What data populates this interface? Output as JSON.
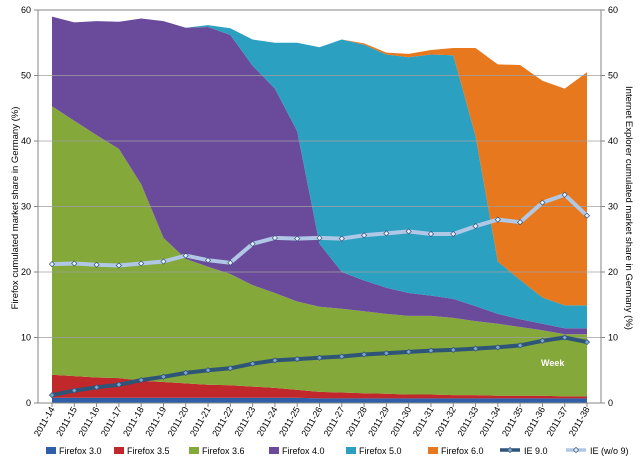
{
  "chart_data": {
    "type": "area",
    "stacked": true,
    "categories": [
      "2011-14",
      "2011-15",
      "2011-16",
      "2011-17",
      "2011-18",
      "2011-19",
      "2011-20",
      "2011-21",
      "2011-22",
      "2011-23",
      "2011-24",
      "2011-25",
      "2011-26",
      "2011-27",
      "2011-28",
      "2011-29",
      "2011-30",
      "2011-31",
      "2011-32",
      "2011-33",
      "2011-34",
      "2011-35",
      "2011-36",
      "2011-37",
      "2011-38"
    ],
    "ylabel_left": "Firefox cumulated market share in Germany (%)",
    "ylabel_right": "Internet Explorer cumulated market share in Germany (%)",
    "ylim": [
      0,
      60
    ],
    "yticks": [
      0,
      10,
      20,
      30,
      40,
      50,
      60
    ],
    "annotation": "Week",
    "legend_position": "bottom",
    "series": [
      {
        "name": "Firefox 3.0",
        "color": "#2e5fa8",
        "values": [
          0.8,
          0.8,
          0.8,
          0.8,
          0.8,
          0.8,
          0.8,
          0.8,
          0.8,
          0.8,
          0.8,
          0.8,
          0.7,
          0.7,
          0.7,
          0.7,
          0.7,
          0.7,
          0.7,
          0.7,
          0.7,
          0.7,
          0.7,
          0.7,
          0.7
        ]
      },
      {
        "name": "Firefox 3.5",
        "color": "#c0282b",
        "values": [
          3.5,
          3.3,
          3.1,
          3.0,
          2.6,
          2.4,
          2.2,
          2.0,
          1.9,
          1.7,
          1.5,
          1.2,
          1.0,
          0.9,
          0.8,
          0.7,
          0.6,
          0.6,
          0.5,
          0.5,
          0.4,
          0.4,
          0.4,
          0.3,
          0.3
        ]
      },
      {
        "name": "Firefox 3.6",
        "color": "#84a83a",
        "values": [
          41.0,
          39.0,
          37.0,
          35.0,
          30.0,
          22.0,
          19.0,
          18.0,
          17.0,
          15.5,
          14.5,
          13.5,
          13.0,
          12.8,
          12.5,
          12.2,
          12.0,
          12.0,
          11.8,
          11.3,
          11.0,
          10.5,
          10.0,
          9.5,
          9.5
        ]
      },
      {
        "name": "Firefox 4.0",
        "color": "#6a4a9a",
        "values": [
          13.7,
          15.0,
          17.4,
          19.4,
          25.3,
          33.1,
          35.3,
          36.6,
          36.5,
          33.5,
          31.2,
          26.0,
          9.6,
          5.6,
          4.7,
          4.0,
          3.5,
          3.1,
          2.9,
          2.3,
          1.5,
          1.2,
          1.0,
          0.9,
          0.9
        ]
      },
      {
        "name": "Firefox 5.0",
        "color": "#2ca0c0",
        "values": [
          0,
          0,
          0,
          0,
          0,
          0,
          0,
          0.3,
          1.0,
          4.0,
          7.0,
          13.5,
          30.0,
          35.5,
          36.0,
          35.6,
          36.0,
          36.8,
          37.2,
          26.0,
          8.0,
          6.0,
          4.0,
          3.5,
          3.5
        ]
      },
      {
        "name": "Firefox 6.0",
        "color": "#e8781e",
        "values": [
          0,
          0,
          0,
          0,
          0,
          0,
          0,
          0,
          0,
          0,
          0,
          0,
          0,
          0,
          0.2,
          0.3,
          0.5,
          0.7,
          1.1,
          13.4,
          30.1,
          32.8,
          33.1,
          33.1,
          35.6
        ]
      }
    ],
    "line_series": [
      {
        "name": "IE 9.0",
        "color": "#2e5577",
        "marker_fill": "#7aa6cf",
        "values": [
          1.2,
          1.9,
          2.4,
          2.8,
          3.5,
          4.0,
          4.6,
          5.0,
          5.3,
          6.0,
          6.5,
          6.7,
          6.9,
          7.1,
          7.4,
          7.6,
          7.8,
          8.0,
          8.1,
          8.3,
          8.5,
          8.8,
          9.5,
          10.0,
          9.3
        ]
      },
      {
        "name": "IE (w/o 9)",
        "color": "#b0c8e6",
        "marker_fill": "#e8f0fa",
        "values": [
          21.2,
          21.3,
          21.1,
          21.0,
          21.3,
          21.6,
          22.5,
          21.8,
          21.4,
          24.3,
          25.2,
          25.1,
          25.2,
          25.1,
          25.6,
          25.9,
          26.2,
          25.8,
          25.8,
          27.0,
          28.0,
          27.6,
          30.6,
          31.8,
          28.6
        ]
      }
    ]
  }
}
